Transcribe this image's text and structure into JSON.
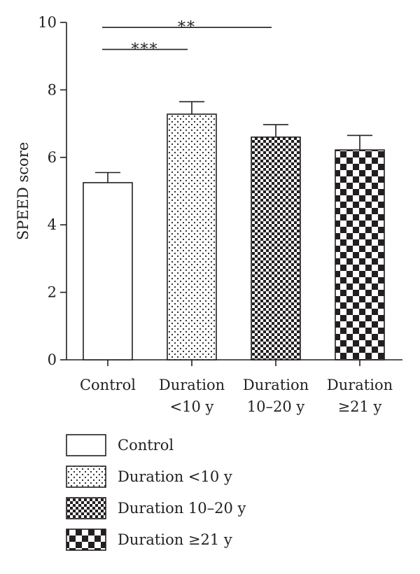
{
  "chart_data": {
    "type": "bar",
    "title": "",
    "xlabel": "",
    "ylabel": "SPEED score",
    "ylim": [
      0,
      10
    ],
    "yticks": [
      0,
      2,
      4,
      6,
      8,
      10
    ],
    "grid": false,
    "legend_position": "bottom",
    "categories": [
      {
        "lines": [
          "Control"
        ],
        "legend": "Control",
        "pattern": "none"
      },
      {
        "lines": [
          "Duration",
          "<10 y"
        ],
        "legend": "Duration <10 y",
        "pattern": "dots"
      },
      {
        "lines": [
          "Duration",
          "10–20 y"
        ],
        "legend": "Duration 10–20 y",
        "pattern": "fine-checker"
      },
      {
        "lines": [
          "Duration",
          "≥21 y"
        ],
        "legend": "Duration ≥21 y",
        "pattern": "coarse-checker"
      }
    ],
    "values": [
      5.25,
      7.28,
      6.6,
      6.22
    ],
    "errors": [
      0.3,
      0.37,
      0.37,
      0.43
    ],
    "significance": [
      {
        "from": 0,
        "to": 2,
        "label": "**",
        "y": 9.85
      },
      {
        "from": 0,
        "to": 1,
        "label": "***",
        "y": 9.2
      }
    ],
    "colors": {
      "stroke": "#231f20",
      "fill": "#ffffff"
    }
  }
}
